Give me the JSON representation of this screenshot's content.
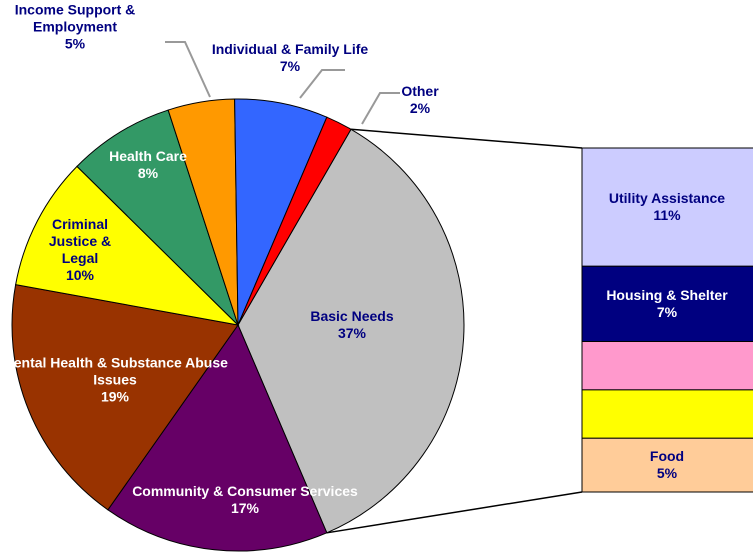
{
  "chart_data": {
    "type": "pie",
    "categories": [
      "Basic Needs",
      "Community & Consumer Services",
      "Mental Health & Substance Abuse Issues",
      "Criminal Justice & Legal",
      "Health Care",
      "Income Support & Employment",
      "Individual & Family Life",
      "Other"
    ],
    "values": [
      37,
      17,
      19,
      10,
      8,
      5,
      7,
      2
    ],
    "value_labels": [
      "37%",
      "17%",
      "19%",
      "10%",
      "8%",
      "5%",
      "7%",
      "2%"
    ],
    "colors": [
      "#c0c0c0",
      "#660066",
      "#993300",
      "#ffff00",
      "#339966",
      "#ff9900",
      "#3366ff",
      "#ff0000"
    ],
    "breakdown": {
      "categories": [
        "Utility Assistance",
        "Housing & Shelter",
        null,
        null,
        "Food"
      ],
      "values": [
        11,
        7,
        4.5,
        4.5,
        5
      ],
      "value_labels": [
        "11%",
        "7%",
        null,
        null,
        "5%"
      ],
      "colors": [
        "#ccccff",
        "#000080",
        "#ff99cc",
        "#ffff00",
        "#ffcc99"
      ]
    }
  }
}
